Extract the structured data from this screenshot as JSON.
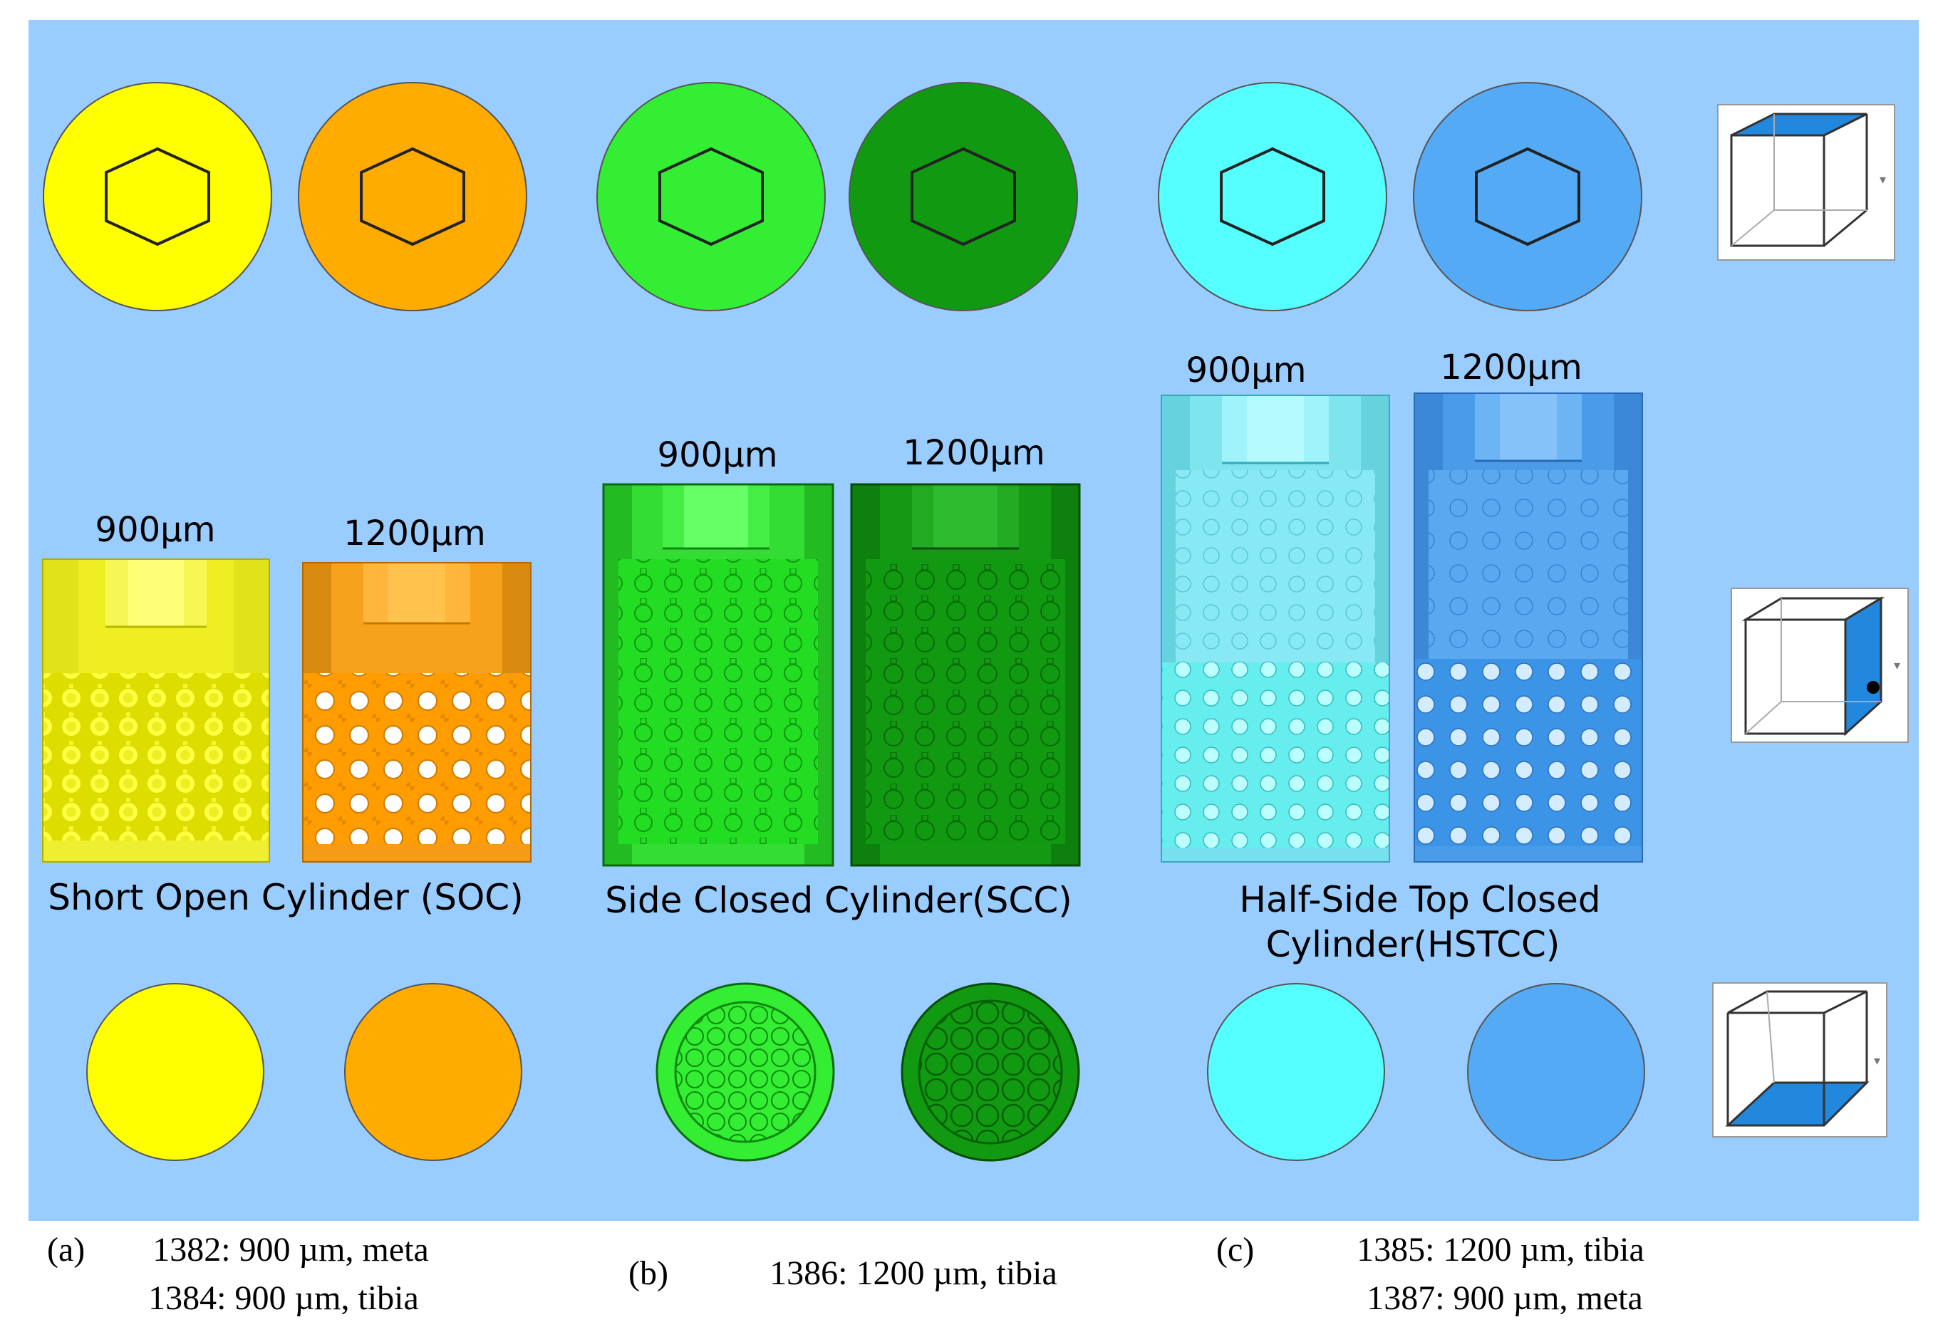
{
  "colors": {
    "background": "#99ccff",
    "yellow": "#ffff00",
    "orange": "#ffab00",
    "green_light": "#33ee33",
    "green_dark": "#119911",
    "cyan": "#55ffff",
    "blue": "#55aaf5",
    "cube_face": "#2288dd"
  },
  "groups": [
    {
      "id": "soc",
      "name": "Short Open Cylinder (SOC)",
      "size_a": "900µm",
      "size_b": "1200µm",
      "panel_letter": "(a)",
      "caption_lines": [
        "1382: 900 µm, meta",
        "1384: 900 µm, tibia"
      ]
    },
    {
      "id": "scc",
      "name": "Side Closed Cylinder(SCC)",
      "size_a": "900µm",
      "size_b": "1200µm",
      "panel_letter": "(b)",
      "caption_lines": [
        "1386: 1200 µm, tibia"
      ]
    },
    {
      "id": "hstcc",
      "name_lines": [
        "Half-Side Top Closed",
        "Cylinder(HSTCC)"
      ],
      "size_a": "900µm",
      "size_b": "1200µm",
      "panel_letter": "(c)",
      "caption_lines": [
        "1385: 1200 µm, tibia",
        "1387: 900 µm, meta"
      ]
    }
  ],
  "view_cubes": [
    {
      "name": "top-view",
      "highlighted_face": "top"
    },
    {
      "name": "front-view",
      "highlighted_face": "right"
    },
    {
      "name": "bottom-view",
      "highlighted_face": "bottom"
    }
  ]
}
